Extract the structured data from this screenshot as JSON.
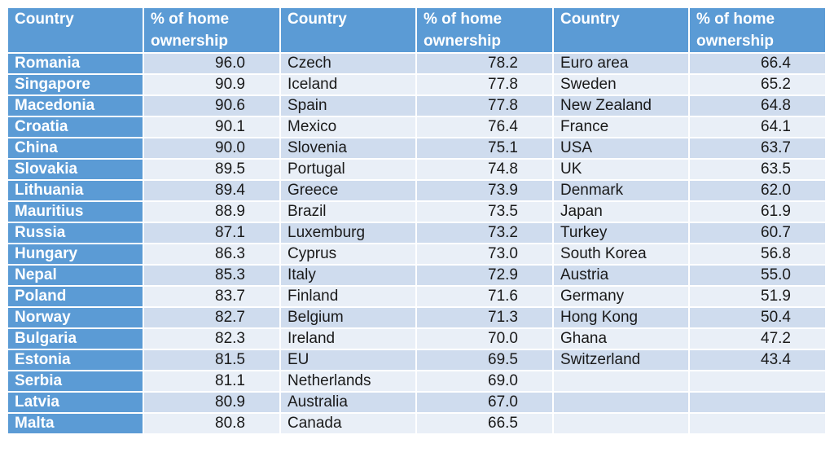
{
  "headers": [
    "Country",
    "% of home ownership",
    "Country",
    "% of home ownership",
    "Country",
    "% of home ownership"
  ],
  "rows": [
    [
      "Romania",
      "96.0",
      "Czech",
      "78.2",
      "Euro area",
      "66.4"
    ],
    [
      "Singapore",
      "90.9",
      "Iceland",
      "77.8",
      "Sweden",
      "65.2"
    ],
    [
      "Macedonia",
      "90.6",
      "Spain",
      "77.8",
      "New Zealand",
      "64.8"
    ],
    [
      "Croatia",
      "90.1",
      "Mexico",
      "76.4",
      "France",
      "64.1"
    ],
    [
      "China",
      "90.0",
      "Slovenia",
      "75.1",
      "USA",
      "63.7"
    ],
    [
      "Slovakia",
      "89.5",
      "Portugal",
      "74.8",
      "UK",
      "63.5"
    ],
    [
      "Lithuania",
      "89.4",
      "Greece",
      "73.9",
      "Denmark",
      "62.0"
    ],
    [
      "Mauritius",
      "88.9",
      "Brazil",
      "73.5",
      "Japan",
      "61.9"
    ],
    [
      "Russia",
      "87.1",
      "Luxemburg",
      "73.2",
      "Turkey",
      "60.7"
    ],
    [
      "Hungary",
      "86.3",
      "Cyprus",
      "73.0",
      "South Korea",
      "56.8"
    ],
    [
      "Nepal",
      "85.3",
      "Italy",
      "72.9",
      "Austria",
      "55.0"
    ],
    [
      "Poland",
      "83.7",
      "Finland",
      "71.6",
      "Germany",
      "51.9"
    ],
    [
      "Norway",
      "82.7",
      "Belgium",
      "71.3",
      "Hong Kong",
      "50.4"
    ],
    [
      "Bulgaria",
      "82.3",
      "Ireland",
      "70.0",
      "Ghana",
      "47.2"
    ],
    [
      "Estonia",
      "81.5",
      "EU",
      "69.5",
      "Switzerland",
      "43.4"
    ],
    [
      "Serbia",
      "81.1",
      "Netherlands",
      "69.0",
      "",
      ""
    ],
    [
      "Latvia",
      "80.9",
      "Australia",
      "67.0",
      "",
      ""
    ],
    [
      "Malta",
      "80.8",
      "Canada",
      "66.5",
      "",
      ""
    ]
  ]
}
